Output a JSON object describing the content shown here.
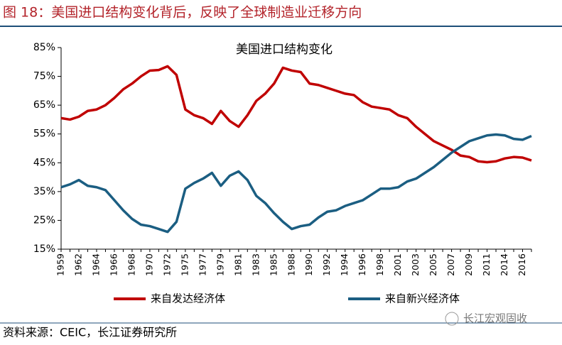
{
  "header": {
    "title": "图 18：美国进口结构变化背后，反映了全球制造业迁移方向"
  },
  "chart_data": {
    "type": "line",
    "title": "美国进口结构变化",
    "categories": [
      "1959",
      null,
      "1962",
      null,
      "1964",
      null,
      "1966",
      null,
      "1968",
      null,
      "1970",
      null,
      "1972",
      null,
      "1975",
      null,
      "1977",
      null,
      "1979",
      null,
      "1981",
      null,
      "1983",
      null,
      "1985",
      null,
      "1988",
      null,
      "1990",
      null,
      "1992",
      null,
      "1994",
      null,
      "1996",
      null,
      "1998",
      null,
      "2001",
      null,
      "2003",
      null,
      "2005",
      null,
      "2007",
      null,
      "2009",
      null,
      "2011",
      null,
      "2014",
      null,
      "2016",
      null
    ],
    "series": [
      {
        "name": "来自发达经济体",
        "color": "#c00000",
        "values": [
          60.5,
          60,
          61,
          63,
          63.5,
          65,
          67.5,
          70.5,
          72.5,
          75,
          77,
          77.2,
          78.5,
          75.5,
          63.5,
          61.5,
          60.5,
          58.5,
          63,
          59.5,
          57.5,
          61.5,
          66.5,
          69,
          72.5,
          78,
          77,
          76.5,
          72.5,
          72,
          71,
          70,
          69,
          68.5,
          66,
          64.5,
          64,
          63.5,
          61.5,
          60.5,
          57.5,
          55,
          52.5,
          51,
          49.5,
          47.5,
          47,
          45.5,
          45.2,
          45.5,
          46.5,
          47,
          46.8,
          45.8
        ]
      },
      {
        "name": "来自新兴经济体",
        "color": "#1b5e82",
        "values": [
          36.5,
          37.5,
          39,
          37,
          36.5,
          35.5,
          32,
          28.5,
          25.5,
          23.5,
          23,
          22,
          21,
          24.5,
          36,
          38,
          39.5,
          41.5,
          37,
          40.5,
          42,
          39,
          33.5,
          31,
          27.5,
          24.5,
          22,
          23,
          23.5,
          26,
          28,
          28.5,
          30,
          31,
          32,
          34,
          36,
          36,
          36.5,
          38.5,
          39.5,
          41.5,
          43.5,
          46,
          48.5,
          50.5,
          52.5,
          53.5,
          54.5,
          54.8,
          54.5,
          53.3,
          53,
          54.3
        ]
      }
    ],
    "ylim": [
      15,
      85
    ],
    "yticks": [
      {
        "value": 15,
        "label": "15%"
      },
      {
        "value": 25,
        "label": "25%"
      },
      {
        "value": 35,
        "label": "35%"
      },
      {
        "value": 45,
        "label": "45%"
      },
      {
        "value": 55,
        "label": "55%"
      },
      {
        "value": 65,
        "label": "65%"
      },
      {
        "value": 75,
        "label": "75%"
      },
      {
        "value": 85,
        "label": "85%"
      }
    ],
    "legend": "bottom"
  },
  "footer": {
    "source": "资料来源：CEIC，长江证券研究所",
    "watermark": "长江宏观固收"
  }
}
